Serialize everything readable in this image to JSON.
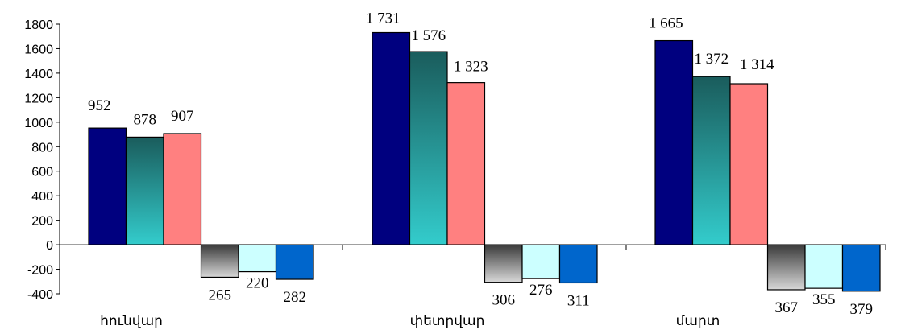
{
  "chart_data": {
    "type": "bar",
    "categories": [
      "հունվար",
      "փետրվար",
      "մարտ"
    ],
    "ylim": [
      -400,
      1800
    ],
    "yticks": [
      1800,
      1600,
      1400,
      1200,
      1000,
      800,
      600,
      400,
      200,
      0,
      -200,
      -400
    ],
    "grid": false,
    "legend": "none",
    "title": "",
    "xlabel": "",
    "ylabel": "",
    "series": [
      {
        "values": [
          952,
          1731,
          1665
        ],
        "labels": [
          "952",
          "1 731",
          "1 665"
        ],
        "color": "#00007f",
        "style": "solid"
      },
      {
        "values": [
          878,
          1576,
          1372
        ],
        "labels": [
          "878",
          "1 576",
          "1 372"
        ],
        "color": "#33cccc",
        "style": "teal-gradient"
      },
      {
        "values": [
          907,
          1323,
          1314
        ],
        "labels": [
          "907",
          "1 323",
          "1 314"
        ],
        "color": "#ff8080",
        "style": "solid"
      },
      {
        "values": [
          -265,
          -306,
          -367
        ],
        "labels": [
          "265",
          "306",
          "367"
        ],
        "color": "#808080",
        "style": "gray-gradient"
      },
      {
        "values": [
          -220,
          -276,
          -355
        ],
        "labels": [
          "220",
          "276",
          "355"
        ],
        "color": "#ccffff",
        "style": "solid"
      },
      {
        "values": [
          -282,
          -311,
          -379
        ],
        "labels": [
          "282",
          "311",
          "379"
        ],
        "color": "#0066cc",
        "style": "solid"
      }
    ]
  }
}
